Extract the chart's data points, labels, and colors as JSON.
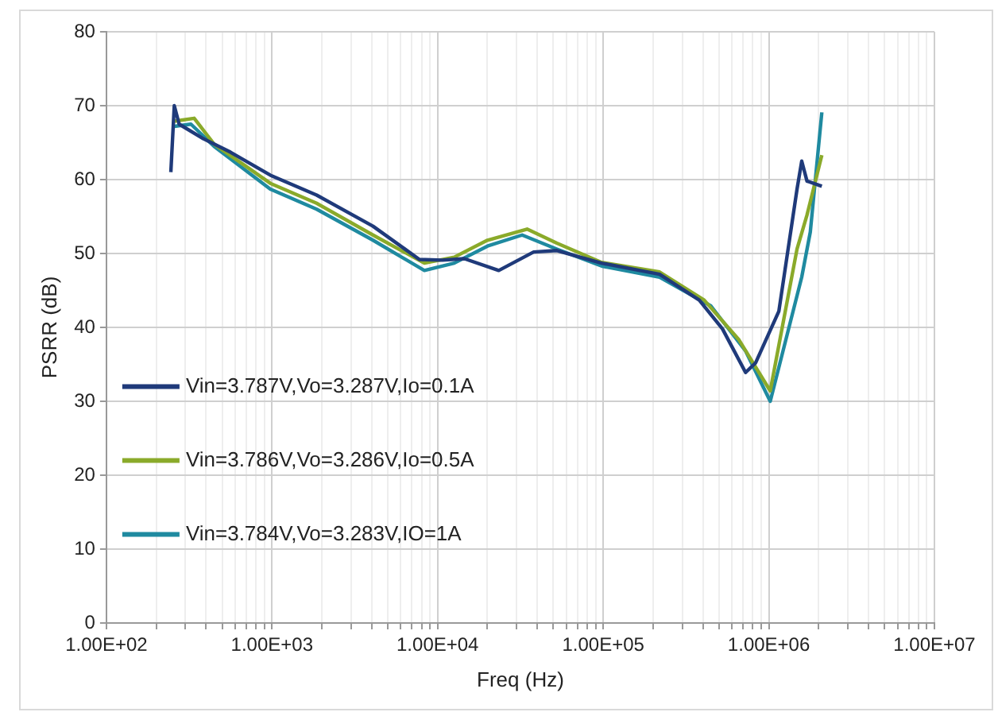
{
  "chart_data": {
    "type": "line",
    "xlabel": "Freq (Hz)",
    "ylabel": "PSRR (dB)",
    "log": "x",
    "grid": true,
    "legend": "left",
    "marker": "none",
    "line_style": "solid",
    "xlim": [
      100,
      10000000
    ],
    "ylim": [
      0,
      80
    ],
    "xticks": [
      {
        "value": 100,
        "label": "1.00E+02"
      },
      {
        "value": 200,
        "label": null
      },
      {
        "value": 300,
        "label": null
      },
      {
        "value": 400,
        "label": null
      },
      {
        "value": 500,
        "label": null
      },
      {
        "value": 600,
        "label": null
      },
      {
        "value": 700,
        "label": null
      },
      {
        "value": 800,
        "label": null
      },
      {
        "value": 900,
        "label": null
      },
      {
        "value": 1000,
        "label": "1.00E+03"
      },
      {
        "value": 2000,
        "label": null
      },
      {
        "value": 3000,
        "label": null
      },
      {
        "value": 4000,
        "label": null
      },
      {
        "value": 5000,
        "label": null
      },
      {
        "value": 6000,
        "label": null
      },
      {
        "value": 7000,
        "label": null
      },
      {
        "value": 8000,
        "label": null
      },
      {
        "value": 9000,
        "label": null
      },
      {
        "value": 10000,
        "label": "1.00E+04"
      },
      {
        "value": 20000,
        "label": null
      },
      {
        "value": 30000,
        "label": null
      },
      {
        "value": 40000,
        "label": null
      },
      {
        "value": 50000,
        "label": null
      },
      {
        "value": 60000,
        "label": null
      },
      {
        "value": 70000,
        "label": null
      },
      {
        "value": 80000,
        "label": null
      },
      {
        "value": 90000,
        "label": null
      },
      {
        "value": 100000,
        "label": "1.00E+05"
      },
      {
        "value": 200000,
        "label": null
      },
      {
        "value": 300000,
        "label": null
      },
      {
        "value": 400000,
        "label": null
      },
      {
        "value": 500000,
        "label": null
      },
      {
        "value": 600000,
        "label": null
      },
      {
        "value": 700000,
        "label": null
      },
      {
        "value": 800000,
        "label": null
      },
      {
        "value": 900000,
        "label": null
      },
      {
        "value": 1000000,
        "label": "1.00E+06"
      },
      {
        "value": 2000000,
        "label": null
      },
      {
        "value": 3000000,
        "label": null
      },
      {
        "value": 4000000,
        "label": null
      },
      {
        "value": 5000000,
        "label": null
      },
      {
        "value": 6000000,
        "label": null
      },
      {
        "value": 7000000,
        "label": null
      },
      {
        "value": 8000000,
        "label": null
      },
      {
        "value": 9000000,
        "label": null
      },
      {
        "value": 10000000,
        "label": "1.00E+07"
      }
    ],
    "yticks": [
      0,
      10,
      20,
      30,
      40,
      50,
      60,
      70,
      80
    ],
    "series": [
      {
        "name": "Vin=3.787V,Vo=3.287V,Io=0.1A",
        "color": "#1f3a7a",
        "x": [
          245,
          257,
          275,
          380,
          562,
          977,
          1860,
          4070,
          7760,
          10700,
          14500,
          23400,
          38000,
          52500,
          97700,
          219000,
          380000,
          525000,
          724000,
          832000,
          1150000,
          1480000,
          1580000,
          1700000,
          2090000
        ],
        "values": [
          61,
          70,
          67.5,
          65.6,
          63.7,
          60.6,
          57.9,
          53.7,
          49.2,
          49.1,
          49.3,
          47.7,
          50.2,
          50.4,
          48.7,
          47.2,
          43.7,
          39.8,
          33.9,
          35.2,
          42.2,
          58.7,
          62.5,
          59.8,
          59.1
        ]
      },
      {
        "name": "Vin=3.786V,Vo=3.286V,Io=0.5A",
        "color": "#8aaa2a",
        "x": [
          257,
          339,
          447,
          977,
          1860,
          4070,
          8320,
          12600,
          20000,
          34700,
          52500,
          97700,
          219000,
          407000,
          661000,
          1020000,
          1480000,
          1700000,
          2090000
        ],
        "values": [
          67.9,
          68.3,
          64.8,
          59.5,
          56.8,
          52.5,
          48.7,
          49.5,
          51.8,
          53.3,
          51.4,
          48.8,
          47.5,
          43.7,
          38.3,
          31.4,
          50.6,
          55.2,
          63.3
        ]
      },
      {
        "name": "Vin=3.784V,Vo=3.283V,IO=1A",
        "color": "#1f8aa0",
        "x": [
          257,
          324,
          447,
          977,
          1860,
          4070,
          8320,
          12600,
          20000,
          32400,
          52500,
          97700,
          219000,
          447000,
          724000,
          1020000,
          1580000,
          1780000,
          2090000
        ],
        "values": [
          67.2,
          67.5,
          64.5,
          58.7,
          56,
          51.8,
          47.7,
          48.7,
          51,
          52.5,
          50.6,
          48.3,
          46.8,
          42.9,
          36.8,
          30,
          46.8,
          52.9,
          69.1
        ]
      }
    ]
  }
}
